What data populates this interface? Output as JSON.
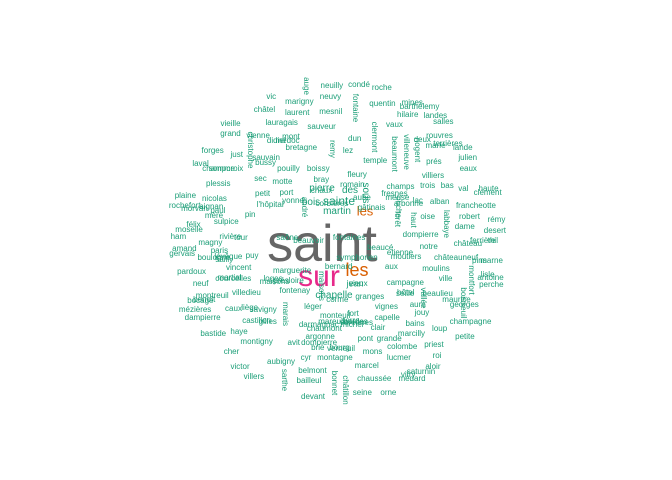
{
  "colors": {
    "background": "#ffffff",
    "tier1": "#666666",
    "tier2": "#e7298a",
    "tier3": "#d95f02",
    "tier4": "#1b9e77",
    "small": "#1b9e77"
  },
  "primary_words": [
    {
      "text": "saint",
      "tier": 1
    },
    {
      "text": "sur",
      "tier": 2
    },
    {
      "text": "les",
      "tier": 3
    },
    {
      "text": "les",
      "tier": 3
    },
    {
      "text": "sainte",
      "tier": 4
    },
    {
      "text": "chapelle",
      "tier": 4
    },
    {
      "text": "martin",
      "tier": 4
    },
    {
      "text": "des",
      "tier": 4
    },
    {
      "text": "pierre",
      "tier": 4
    },
    {
      "text": "bois",
      "tier": 4
    },
    {
      "text": "jean",
      "tier": 4
    },
    {
      "text": "sous",
      "tier": 4
    }
  ],
  "words": [
    "pouilly",
    "vieille",
    "lauragais",
    "vitry",
    "marigny",
    "remy",
    "fleury",
    "l'hôpital",
    "chaussée",
    "rouvres",
    "jouy",
    "argonne",
    "eaux",
    "villedieu",
    "capelle",
    "castillon",
    "labbaye",
    "bocage",
    "temple",
    "morvan",
    "chaux",
    "bretagne",
    "savigny",
    "dampierre",
    "corme",
    "darmagnac",
    "loges",
    "clermont",
    "just",
    "châteauneuf",
    "martial",
    "gervais",
    "mons",
    "bailleul",
    "plessis",
    "champagne",
    "campagne",
    "neuf",
    "sarthe",
    "notre",
    "roche",
    "montagne",
    "vienne",
    "aubigny",
    "robert",
    "félix",
    "lévêque",
    "roi",
    "sec",
    "fontaine",
    "lac",
    "victor",
    "serre",
    "laval",
    "sauveur",
    "bains",
    "petit",
    "champs",
    "moulins",
    "bastide",
    "auge",
    "châtel",
    "croix",
    "seine",
    "hilaire",
    "grand",
    "magny",
    "dun",
    "perche",
    "sulpice",
    "laurent",
    "villeneuve",
    "petite",
    "corbières",
    "seille",
    "montigny",
    "marcilly",
    "avit",
    "meuse",
    "pont",
    "mesnil",
    "quentin",
    "forêt",
    "aux",
    "georges",
    "romain",
    "prés",
    "granges",
    "boissy",
    "val",
    "lucmer",
    "desert",
    "dame",
    "bonnet",
    "sauvain",
    "marie",
    "forges",
    "lisle",
    "francheotte",
    "villiers",
    "paul",
    "nicolas",
    "cher",
    "oise",
    "montfort",
    "devant",
    "vaux",
    "mines",
    "neuilly",
    "léger",
    "beaulieu",
    "puy",
    "motte",
    "dompierre",
    "gâtinais",
    "marais",
    "plaine",
    "vieux",
    "ville",
    "julien",
    "loup",
    "pin",
    "bray",
    "belmont",
    "aube",
    "bas",
    "andré",
    "tour",
    "clément",
    "orne",
    "mont",
    "château",
    "salles",
    "vignes",
    "neuvy",
    "colombe",
    "etienne",
    "beaumont",
    "ham",
    "alban",
    "thil",
    "pardoux",
    "caux",
    "fontaines",
    "port",
    "présloire",
    "villers",
    "brie",
    "haut",
    "aloir",
    "clair",
    "paris",
    "maurice",
    "vincent",
    "rivière",
    "priest",
    "rémy",
    "boulogne",
    "haute",
    "christophe",
    "marne",
    "michel",
    "cyr",
    "bourg",
    "fontenay",
    "fresnes",
    "moutiers",
    "condé",
    "saône",
    "vic",
    "châtillon",
    "marcel",
    "trois",
    "haye",
    "didier",
    "courcelles",
    "varennes",
    "lez",
    "moselle",
    "saturnin",
    "chaumont",
    "nogent",
    "terrières",
    "ferrière",
    "grande",
    "landes",
    "yonne",
    "fort",
    "gilles",
    "aure",
    "symphorien",
    "amand",
    "vallée",
    "aignan",
    "médoc",
    "barthélemy",
    "médard",
    "champ",
    "verneuil",
    "marguerite",
    "benoît",
    "mareuil",
    "mézières",
    "ouche",
    "beauvoir",
    "antoine",
    "bernard",
    "somme",
    "sailly",
    "beaucé",
    "bordes",
    "maisons",
    "rochefort",
    "lande",
    "maisons",
    "bussy",
    "hôtel",
    "deux",
    "mère",
    "liège",
    "monteuil",
    "arbonne",
    "dompierre",
    "pins",
    "montreuil",
    "boisseuil"
  ]
}
